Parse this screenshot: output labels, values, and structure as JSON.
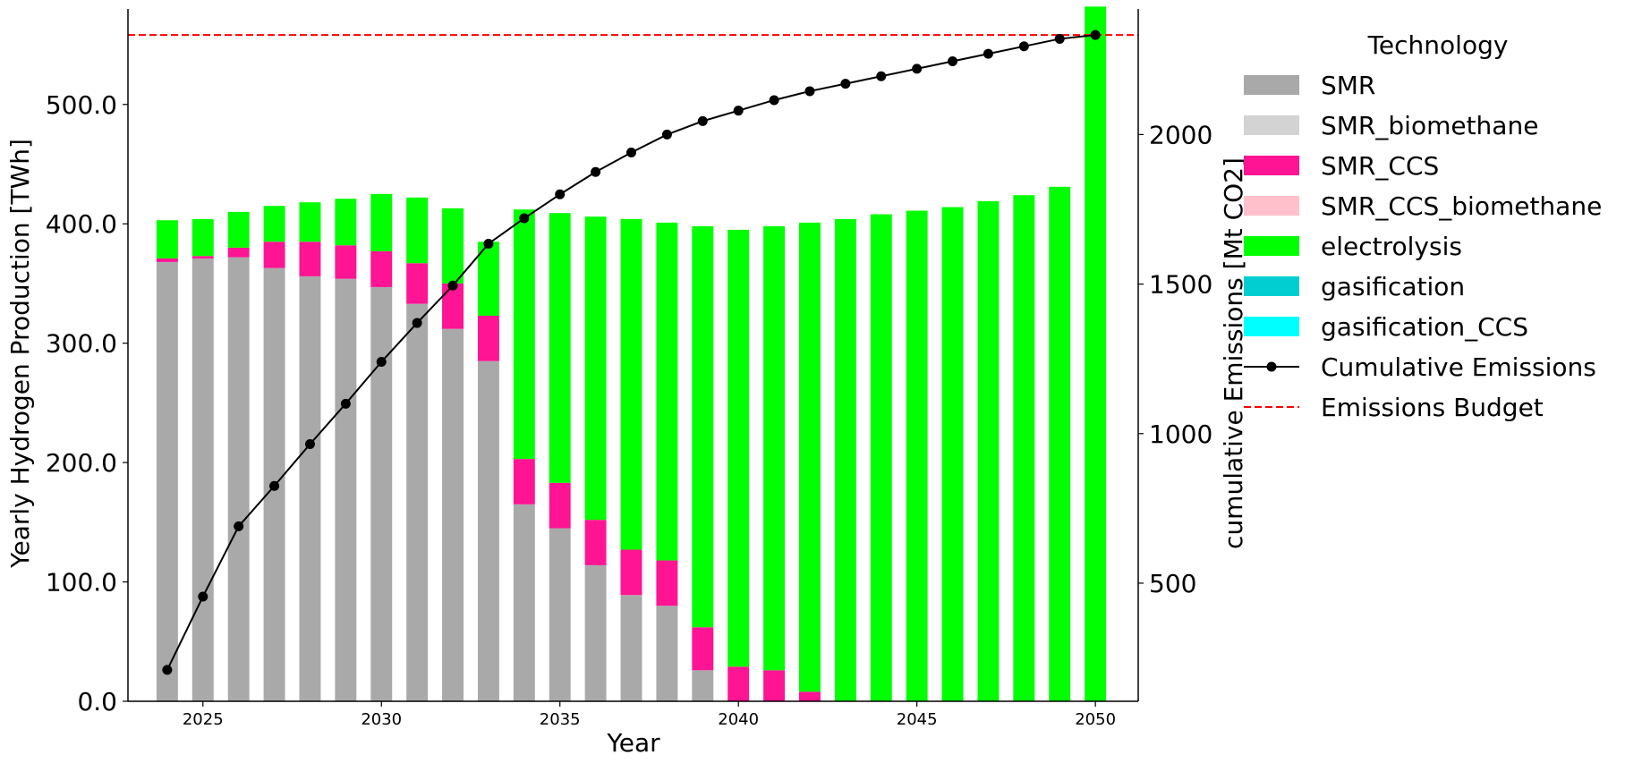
{
  "chart_data": {
    "type": "bar",
    "stacked": true,
    "x": [
      2024,
      2025,
      2026,
      2027,
      2028,
      2029,
      2030,
      2031,
      2032,
      2033,
      2034,
      2035,
      2036,
      2037,
      2038,
      2039,
      2040,
      2041,
      2042,
      2043,
      2044,
      2045,
      2046,
      2047,
      2048,
      2049,
      2050
    ],
    "xticks": [
      "2025",
      "2030",
      "2035",
      "2040",
      "2045",
      "2050"
    ],
    "xlabel": "Year",
    "ylabel": "Yearly Hydrogen Production [TWh]",
    "ylabel_right": "cumulative Emissions [Mt CO2]",
    "ylim": [
      0,
      580
    ],
    "ylim_right": [
      105,
      2420
    ],
    "yticks": [
      "0.0",
      "100.0",
      "200.0",
      "300.0",
      "400.0",
      "500.0"
    ],
    "yticks_right": [
      "500",
      "1000",
      "1500",
      "2000"
    ],
    "legend_title": "Technology",
    "legend_position": "right-outside",
    "series": [
      {
        "name": "SMR",
        "color": "#a9a9a9",
        "values": [
          368,
          371,
          372,
          363,
          356,
          354,
          347,
          333,
          312,
          285,
          165,
          145,
          114,
          89,
          80,
          26,
          0,
          0,
          0,
          0,
          0,
          0,
          0,
          0,
          0,
          0,
          0
        ]
      },
      {
        "name": "SMR_biomethane",
        "color": "#d3d3d3",
        "values": [
          0,
          0,
          0,
          0,
          0,
          0,
          0,
          0,
          0,
          0,
          0,
          0,
          0,
          0,
          0,
          0,
          0,
          0,
          0,
          0,
          0,
          0,
          0,
          0,
          0,
          0,
          0
        ]
      },
      {
        "name": "SMR_CCS",
        "color": "#ff1493",
        "values": [
          3,
          2,
          8,
          22,
          29,
          28,
          30,
          34,
          38,
          38,
          38,
          38,
          38,
          38,
          38,
          36,
          29,
          26,
          8,
          0,
          0,
          0,
          0,
          0,
          0,
          0,
          0
        ]
      },
      {
        "name": "SMR_CCS_biomethane",
        "color": "#ffc0cb",
        "values": [
          0,
          0,
          0,
          0,
          0,
          0,
          0,
          0,
          0,
          0,
          0,
          0,
          0,
          0,
          0,
          0,
          0,
          0,
          0,
          0,
          0,
          0,
          0,
          0,
          0,
          0,
          0
        ]
      },
      {
        "name": "electrolysis",
        "color": "#00ff00",
        "values": [
          32,
          31,
          30,
          30,
          33,
          39,
          48,
          55,
          63,
          62,
          209,
          226,
          254,
          277,
          283,
          336,
          366,
          372,
          393,
          404,
          408,
          411,
          414,
          419,
          424,
          431,
          582
        ]
      },
      {
        "name": "gasification",
        "color": "#00ced1",
        "values": [
          0,
          0,
          0,
          0,
          0,
          0,
          0,
          0,
          0,
          0,
          0,
          0,
          0,
          0,
          0,
          0,
          0,
          0,
          0,
          0,
          0,
          0,
          0,
          0,
          0,
          0,
          0
        ]
      },
      {
        "name": "gasification_CCS",
        "color": "#00ffff",
        "values": [
          0,
          0,
          0,
          0,
          0,
          0,
          0,
          0,
          0,
          0,
          0,
          0,
          0,
          0,
          0,
          0,
          0,
          0,
          0,
          0,
          0,
          0,
          0,
          0,
          0,
          0,
          0
        ]
      }
    ],
    "line_series": {
      "name": "Cumulative Emissions",
      "color": "#000000",
      "axis": "right",
      "values": [
        210,
        455,
        690,
        825,
        965,
        1100,
        1240,
        1370,
        1495,
        1635,
        1720,
        1800,
        1875,
        1940,
        2000,
        2045,
        2080,
        2115,
        2145,
        2170,
        2195,
        2220,
        2245,
        2270,
        2295,
        2320,
        2333
      ]
    },
    "reference_line": {
      "name": "Emissions Budget",
      "color": "#ff0000",
      "axis": "right",
      "value": 2333,
      "style": "dashed"
    }
  }
}
